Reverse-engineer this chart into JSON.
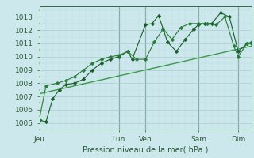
{
  "xlabel": "Pression niveau de la mer( hPa )",
  "background_color": "#cce8ec",
  "grid_major_color": "#aaccd0",
  "grid_minor_color": "#bbdde0",
  "line_color1": "#1a5c2a",
  "line_color2": "#2a7a3a",
  "line_color_trend": "#3a9a4a",
  "xlim": [
    0,
    96
  ],
  "ylim": [
    1004.5,
    1013.8
  ],
  "yticks": [
    1005,
    1006,
    1007,
    1008,
    1009,
    1010,
    1011,
    1012,
    1013
  ],
  "xtick_positions": [
    0,
    36,
    48,
    72,
    90
  ],
  "xtick_labels": [
    "Jeu",
    "Lun",
    "Ven",
    "Sam",
    "Dim"
  ],
  "series1_x": [
    0,
    3,
    6,
    9,
    12,
    16,
    20,
    24,
    28,
    32,
    36,
    40,
    42,
    48,
    51,
    54,
    58,
    62,
    66,
    70,
    72,
    75,
    78,
    82,
    86,
    90,
    94,
    96
  ],
  "series1_y": [
    1005.2,
    1005.1,
    1006.8,
    1007.5,
    1007.9,
    1008.0,
    1008.3,
    1009.0,
    1009.5,
    1009.8,
    1010.0,
    1010.4,
    1009.8,
    1012.4,
    1012.5,
    1013.1,
    1011.1,
    1010.4,
    1011.3,
    1012.1,
    1012.4,
    1012.5,
    1012.5,
    1013.3,
    1013.0,
    1010.4,
    1011.0,
    1011.0
  ],
  "series2_x": [
    0,
    3,
    8,
    12,
    16,
    20,
    24,
    28,
    32,
    36,
    40,
    44,
    48,
    52,
    56,
    60,
    64,
    68,
    72,
    76,
    80,
    84,
    88,
    90,
    94,
    96
  ],
  "series2_y": [
    1005.3,
    1007.8,
    1008.0,
    1008.2,
    1008.5,
    1009.0,
    1009.5,
    1009.8,
    1010.0,
    1010.1,
    1010.4,
    1009.8,
    1009.8,
    1011.1,
    1012.1,
    1011.3,
    1012.2,
    1012.5,
    1012.5,
    1012.5,
    1012.4,
    1013.0,
    1010.8,
    1010.0,
    1011.0,
    1011.1
  ],
  "trend_x": [
    0,
    96
  ],
  "trend_y": [
    1007.2,
    1010.8
  ],
  "vline_positions": [
    36,
    48,
    72,
    90
  ],
  "marker_size": 2.5,
  "figw": 3.2,
  "figh": 2.0,
  "dpi": 100
}
